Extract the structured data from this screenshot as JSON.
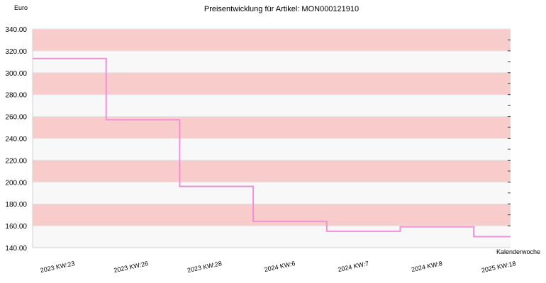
{
  "chart_data": {
    "type": "line",
    "step": true,
    "title": "Preisentwicklung für Artikel: MON000121910",
    "ylabel": "Euro",
    "xlabel": "Kalenderwoche",
    "ylim": [
      140,
      340
    ],
    "yticks": [
      "140.00",
      "160.00",
      "180.00",
      "200.00",
      "220.00",
      "240.00",
      "260.00",
      "280.00",
      "300.00",
      "320.00",
      "340.00"
    ],
    "categories": [
      "2023 KW:23",
      "2023 KW:26",
      "2023 KW:28",
      "2024 KW:6",
      "2024 KW:7",
      "2024 KW:8",
      "2025 KW:18"
    ],
    "values": [
      313,
      257,
      196,
      164,
      155,
      159,
      150
    ],
    "band_colors": [
      "#f8f8f8",
      "#f9cccc"
    ],
    "line_color": "#f090d8"
  }
}
